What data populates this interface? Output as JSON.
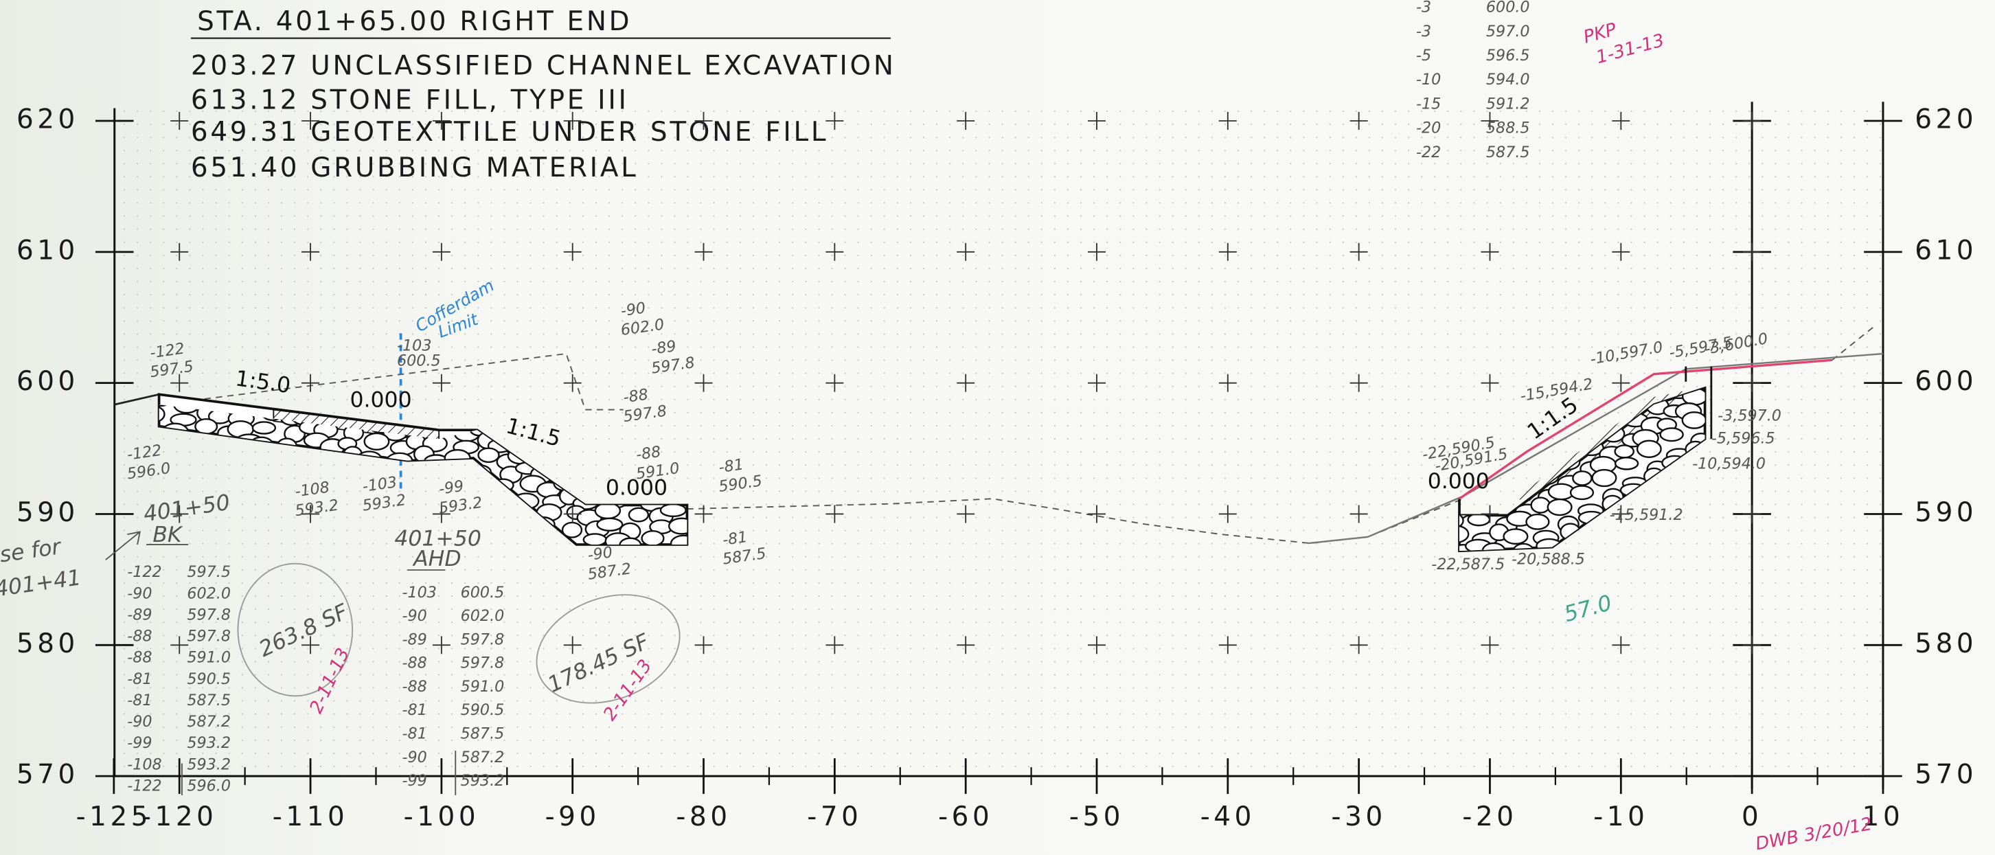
{
  "header": {
    "station": "STA. 401+65.00 RIGHT END",
    "quantities": [
      "203.27 UNCLASSIFIED CHANNEL EXCAVATION",
      "613.12 STONE FILL, TYPE III",
      "649.31 GEOTEXTTILE UNDER STONE FILL",
      "651.40 GRUBBING MATERIAL"
    ]
  },
  "axes": {
    "xticks": [
      -125,
      -120,
      -110,
      -100,
      -90,
      -80,
      -70,
      -60,
      -50,
      -40,
      -30,
      -20,
      -10,
      0,
      10
    ],
    "yticks": [
      570,
      580,
      590,
      600,
      610,
      620
    ]
  },
  "annotations": {
    "slope_left": "1:5.0",
    "offset_left": "0.000",
    "slope_mid": "1:1.5",
    "offset_mid": "0.000",
    "offset_right": "0.000",
    "slope_right": "1:1.5",
    "cofferdam": [
      "Cofferdam",
      "Limit"
    ],
    "cofferdam_point": [
      "-103",
      "600.5"
    ],
    "left_points": [
      [
        "-122",
        "597.5"
      ],
      [
        "-122",
        "596.0"
      ],
      [
        "-108",
        "593.2"
      ],
      [
        "-103",
        "593.2"
      ],
      [
        "-99",
        "593.2"
      ],
      [
        "-90",
        "587.2"
      ],
      [
        "-90",
        "602.0"
      ],
      [
        "-89",
        "597.8"
      ],
      [
        "-88",
        "597.8"
      ],
      [
        "-88",
        "591.0"
      ],
      [
        "-81",
        "590.5"
      ],
      [
        "-81",
        "587.5"
      ]
    ],
    "bk": {
      "station": "401+50",
      "label": "BK",
      "note": [
        "se for",
        "401+41"
      ],
      "list": [
        [
          "-122",
          "597.5"
        ],
        [
          "-90",
          "602.0"
        ],
        [
          "-89",
          "597.8"
        ],
        [
          "-88",
          "597.8"
        ],
        [
          "-88",
          "591.0"
        ],
        [
          "-81",
          "590.5"
        ],
        [
          "-81",
          "587.5"
        ],
        [
          "-90",
          "587.2"
        ],
        [
          "-99",
          "593.2"
        ],
        [
          "-108",
          "593.2"
        ],
        [
          "-122",
          "596.0"
        ]
      ]
    },
    "ahd": {
      "station": "401+50",
      "label": "AHD",
      "list": [
        [
          "-103",
          "600.5"
        ],
        [
          "-90",
          "602.0"
        ],
        [
          "-89",
          "597.8"
        ],
        [
          "-88",
          "597.8"
        ],
        [
          "-88",
          "591.0"
        ],
        [
          "-81",
          "590.5"
        ],
        [
          "-81",
          "587.5"
        ],
        [
          "-90",
          "587.2"
        ],
        [
          "-99",
          "593.2"
        ]
      ]
    },
    "area_bk": "263.8 SF",
    "area_ahd": "178.45 SF",
    "initials_bk": "2-11-13",
    "initials_ahd": "2-11-13",
    "survey_right": [
      [
        "-3",
        "600.0"
      ],
      [
        "-3",
        "597.0"
      ],
      [
        "-5",
        "596.5"
      ],
      [
        "-10",
        "594.0"
      ],
      [
        "-15",
        "591.2"
      ],
      [
        "-20",
        "588.5"
      ],
      [
        "-22",
        "587.5"
      ]
    ],
    "pkp": [
      "PKP",
      "1-31-13"
    ],
    "right_points": [
      "-10,597.0",
      "-5,597.5",
      "-3,600.0",
      "-15,594.2",
      "-22,590.5",
      "-20,591.5",
      "-3,597.0",
      "-5,596.5",
      "-10,594.0",
      "-15,591.2",
      "-22,587.5",
      "-20,588.5"
    ],
    "area_right": "57.0",
    "dwb": "DWB 3/20/12"
  }
}
